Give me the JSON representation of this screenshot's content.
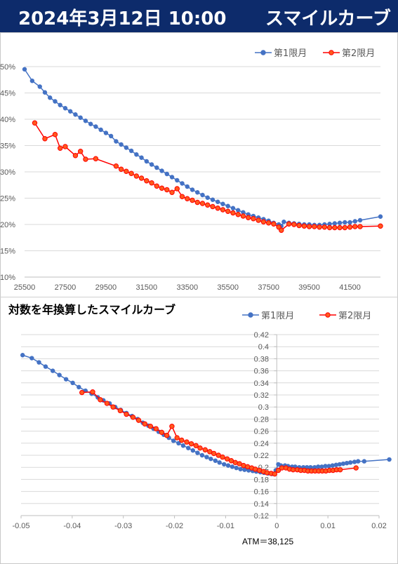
{
  "header": {
    "date": "2024年3月12日 10:00",
    "title": "スマイルカーブ"
  },
  "colors": {
    "header_bg": "#0d2b6b",
    "series1": "#4472c4",
    "series2": "#ff0000",
    "series2_fill": "#ff5a1e"
  },
  "chart_data": [
    {
      "type": "line",
      "title": "",
      "xlim": [
        25500,
        43000
      ],
      "ylim": [
        0.1,
        0.5
      ],
      "x_ticks": [
        "25500",
        "27500",
        "29500",
        "31500",
        "33500",
        "35500",
        "37500",
        "39500",
        "41500"
      ],
      "y_ticks": [
        "10%",
        "15%",
        "20%",
        "25%",
        "30%",
        "35%",
        "40%",
        "45%",
        "50%"
      ],
      "legend_position": "top-right",
      "series": [
        {
          "name": "第1限月",
          "x": [
            25500,
            25875,
            26250,
            26500,
            26750,
            27000,
            27250,
            27500,
            27750,
            28000,
            28250,
            28500,
            28750,
            29000,
            29250,
            29500,
            29750,
            30000,
            30250,
            30500,
            30750,
            31000,
            31250,
            31500,
            31750,
            32000,
            32250,
            32500,
            32750,
            33000,
            33250,
            33500,
            33750,
            34000,
            34250,
            34500,
            34750,
            35000,
            35250,
            35500,
            35750,
            36000,
            36250,
            36500,
            36750,
            37000,
            37250,
            37500,
            37750,
            38000,
            38125,
            38250,
            38500,
            38750,
            39000,
            39250,
            39500,
            39750,
            40000,
            40250,
            40500,
            40750,
            41000,
            41250,
            41500,
            41750,
            42000,
            43000
          ],
          "y": [
            0.495,
            0.473,
            0.462,
            0.451,
            0.441,
            0.434,
            0.427,
            0.421,
            0.415,
            0.409,
            0.403,
            0.397,
            0.391,
            0.386,
            0.38,
            0.374,
            0.368,
            0.358,
            0.352,
            0.346,
            0.34,
            0.333,
            0.327,
            0.32,
            0.314,
            0.308,
            0.302,
            0.296,
            0.29,
            0.284,
            0.278,
            0.272,
            0.266,
            0.261,
            0.256,
            0.251,
            0.247,
            0.243,
            0.239,
            0.235,
            0.231,
            0.227,
            0.223,
            0.219,
            0.216,
            0.213,
            0.21,
            0.207,
            0.203,
            0.2,
            0.197,
            0.205,
            0.203,
            0.202,
            0.201,
            0.2,
            0.2,
            0.199,
            0.199,
            0.2,
            0.201,
            0.202,
            0.203,
            0.204,
            0.204,
            0.206,
            0.208,
            0.215
          ]
        },
        {
          "name": "第2限月",
          "x": [
            26000,
            26500,
            27000,
            27250,
            27500,
            28000,
            28250,
            28500,
            29000,
            30000,
            30250,
            30500,
            30750,
            31000,
            31250,
            31500,
            31750,
            32000,
            32250,
            32500,
            32750,
            33000,
            33250,
            33500,
            33750,
            34000,
            34250,
            34500,
            34750,
            35000,
            35250,
            35500,
            35750,
            36000,
            36250,
            36500,
            36750,
            37000,
            37250,
            37500,
            37750,
            38000,
            38125,
            38500,
            38750,
            39000,
            39250,
            39500,
            39750,
            40000,
            40250,
            40500,
            40750,
            41000,
            41250,
            41500,
            41750,
            42000,
            43000
          ],
          "y": [
            0.393,
            0.363,
            0.371,
            0.345,
            0.348,
            0.331,
            0.339,
            0.324,
            0.325,
            0.311,
            0.305,
            0.301,
            0.297,
            0.292,
            0.288,
            0.283,
            0.279,
            0.273,
            0.269,
            0.266,
            0.261,
            0.268,
            0.253,
            0.249,
            0.246,
            0.242,
            0.24,
            0.237,
            0.234,
            0.231,
            0.228,
            0.225,
            0.222,
            0.219,
            0.216,
            0.213,
            0.211,
            0.208,
            0.205,
            0.203,
            0.201,
            0.195,
            0.189,
            0.201,
            0.2,
            0.198,
            0.197,
            0.196,
            0.196,
            0.195,
            0.195,
            0.194,
            0.194,
            0.194,
            0.194,
            0.195,
            0.196,
            0.196,
            0.197
          ]
        }
      ]
    },
    {
      "type": "line",
      "title": "対数を年換算したスマイルカーブ",
      "xlim": [
        -0.05,
        0.02
      ],
      "ylim": [
        0.12,
        0.42
      ],
      "x_ticks": [
        "-0.05",
        "-0.04",
        "-0.03",
        "-0.02",
        "-0.01",
        "0",
        "0.01",
        "0.02"
      ],
      "y_ticks": [
        "0.12",
        "0.14",
        "0.16",
        "0.18",
        "0.2",
        "0.22",
        "0.24",
        "0.26",
        "0.28",
        "0.3",
        "0.32",
        "0.34",
        "0.36",
        "0.38",
        "0.4",
        "0.42"
      ],
      "legend_position": "top-right",
      "annotation": "ATM＝38,125",
      "series": [
        {
          "name": "第1限月",
          "x": [
            -0.0497,
            -0.0479,
            -0.0465,
            -0.0452,
            -0.0438,
            -0.0425,
            -0.0412,
            -0.0399,
            -0.0387,
            -0.0374,
            -0.0362,
            -0.035,
            -0.0339,
            -0.0327,
            -0.0316,
            -0.0305,
            -0.0294,
            -0.0283,
            -0.0272,
            -0.0262,
            -0.0251,
            -0.0241,
            -0.0231,
            -0.0221,
            -0.0211,
            -0.0202,
            -0.0192,
            -0.0183,
            -0.0173,
            -0.0164,
            -0.0155,
            -0.0146,
            -0.0137,
            -0.0129,
            -0.012,
            -0.0112,
            -0.0103,
            -0.0095,
            -0.0087,
            -0.0079,
            -0.0071,
            -0.0063,
            -0.0055,
            -0.0047,
            -0.004,
            -0.0032,
            -0.0025,
            -0.0017,
            -0.001,
            -0.0002,
            0.0003,
            0.0008,
            0.0016,
            0.0022,
            0.003,
            0.0036,
            0.0044,
            0.0052,
            0.0059,
            0.0066,
            0.0074,
            0.0081,
            0.0088,
            0.0095,
            0.0102,
            0.0109,
            0.0116,
            0.0123,
            0.013,
            0.0137,
            0.0144,
            0.0152,
            0.0159,
            0.0171,
            0.022
          ],
          "y": [
            0.386,
            0.381,
            0.374,
            0.367,
            0.36,
            0.353,
            0.346,
            0.34,
            0.333,
            0.327,
            0.322,
            0.316,
            0.311,
            0.306,
            0.3,
            0.295,
            0.29,
            0.285,
            0.28,
            0.274,
            0.269,
            0.264,
            0.259,
            0.254,
            0.249,
            0.244,
            0.24,
            0.236,
            0.232,
            0.228,
            0.224,
            0.22,
            0.217,
            0.214,
            0.211,
            0.208,
            0.205,
            0.203,
            0.201,
            0.199,
            0.197,
            0.196,
            0.195,
            0.194,
            0.193,
            0.192,
            0.191,
            0.19,
            0.189,
            0.195,
            0.205,
            0.203,
            0.203,
            0.202,
            0.201,
            0.201,
            0.2,
            0.2,
            0.2,
            0.2,
            0.2,
            0.201,
            0.201,
            0.202,
            0.202,
            0.203,
            0.204,
            0.205,
            0.206,
            0.207,
            0.208,
            0.209,
            0.21,
            0.21,
            0.213
          ]
        },
        {
          "name": "第2限月",
          "x": [
            -0.0381,
            -0.036,
            -0.0345,
            -0.0332,
            -0.032,
            -0.0306,
            -0.0294,
            -0.0281,
            -0.027,
            -0.0258,
            -0.0247,
            -0.0236,
            -0.0225,
            -0.0215,
            -0.0205,
            -0.0195,
            -0.0186,
            -0.0176,
            -0.0167,
            -0.0158,
            -0.015,
            -0.014,
            -0.0131,
            -0.0123,
            -0.0114,
            -0.0106,
            -0.0097,
            -0.0089,
            -0.0081,
            -0.0073,
            -0.0065,
            -0.0057,
            -0.0049,
            -0.0042,
            -0.0034,
            -0.0026,
            -0.0019,
            -0.0011,
            -0.0004,
            0.0003,
            0.001,
            0.0018,
            0.0025,
            0.0032,
            0.004,
            0.0047,
            0.0054,
            0.0061,
            0.0068,
            0.0075,
            0.0082,
            0.0089,
            0.0096,
            0.0103,
            0.011,
            0.0117,
            0.0124,
            0.0155
          ],
          "y": [
            0.324,
            0.325,
            0.312,
            0.306,
            0.3,
            0.294,
            0.288,
            0.283,
            0.278,
            0.272,
            0.268,
            0.264,
            0.258,
            0.253,
            0.268,
            0.249,
            0.245,
            0.242,
            0.239,
            0.236,
            0.232,
            0.229,
            0.226,
            0.223,
            0.22,
            0.217,
            0.214,
            0.211,
            0.208,
            0.206,
            0.203,
            0.201,
            0.199,
            0.197,
            0.195,
            0.193,
            0.191,
            0.19,
            0.189,
            0.195,
            0.199,
            0.199,
            0.197,
            0.196,
            0.196,
            0.195,
            0.195,
            0.194,
            0.194,
            0.194,
            0.194,
            0.194,
            0.194,
            0.195,
            0.195,
            0.196,
            0.196,
            0.199
          ]
        }
      ]
    }
  ]
}
